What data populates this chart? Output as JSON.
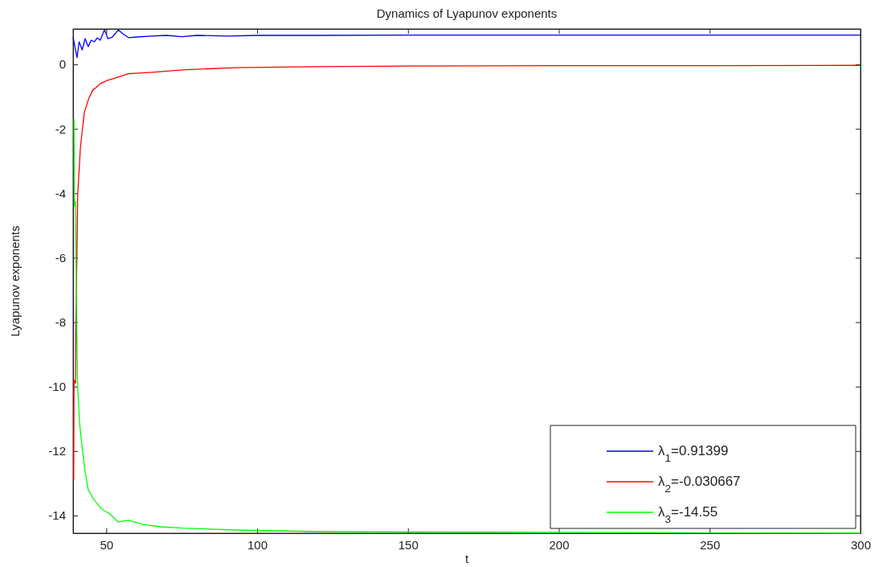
{
  "chart_data": {
    "type": "line",
    "title": "Dynamics of Lyapunov exponents",
    "xlabel": "t",
    "ylabel": "Lyapunov exponents",
    "xlim": [
      39,
      300
    ],
    "ylim": [
      -14.55,
      1.1
    ],
    "xticks": [
      50,
      100,
      150,
      200,
      250,
      300
    ],
    "yticks": [
      -14,
      -12,
      -10,
      -8,
      -6,
      -4,
      -2,
      0
    ],
    "grid": false,
    "legend": "bottom right",
    "line_style": "solid",
    "marker": "none",
    "series": [
      {
        "name": "λ$_{1}$=0.91399",
        "color": "#0000ff",
        "x": [
          39,
          40.3,
          41,
          42,
          43,
          44,
          45,
          46,
          47,
          48,
          49.4,
          50.5,
          52,
          54,
          55.5,
          57.4,
          60,
          65,
          70,
          75,
          80,
          90,
          100,
          120,
          150,
          200,
          250,
          300
        ],
        "values": [
          0.85,
          0.21,
          0.7,
          0.45,
          0.8,
          0.55,
          0.75,
          0.7,
          0.82,
          0.75,
          1.08,
          0.8,
          0.85,
          1.07,
          0.95,
          0.83,
          0.85,
          0.88,
          0.9,
          0.86,
          0.9,
          0.88,
          0.9,
          0.9,
          0.91,
          0.91,
          0.91,
          0.91
        ]
      },
      {
        "name": "λ$_{2}$=-0.030667",
        "color": "#ff0000",
        "x": [
          39.2,
          39.3,
          39.8,
          39.9,
          40.3,
          40.5,
          41.4,
          42.7,
          44.1,
          45.5,
          46.7,
          48,
          50.2,
          52,
          57.4,
          66.2,
          75.3,
          93,
          119.5,
          150,
          200,
          250,
          300
        ],
        "values": [
          -12.9,
          -9.8,
          -9.9,
          -8.2,
          -5.7,
          -4.1,
          -2.6,
          -1.5,
          -1.08,
          -0.8,
          -0.71,
          -0.6,
          -0.5,
          -0.45,
          -0.29,
          -0.24,
          -0.17,
          -0.1,
          -0.07,
          -0.05,
          -0.04,
          -0.04,
          -0.03
        ]
      },
      {
        "name": "λ$_{3}$=-14.55",
        "color": "#00ff00",
        "x": [
          39.3,
          39.4,
          39.8,
          40.2,
          40.5,
          41.2,
          41.9,
          42.9,
          44,
          45.8,
          48.5,
          51.2,
          53.9,
          57.4,
          61.8,
          68,
          75.2,
          93,
          120,
          200,
          250,
          300
        ],
        "values": [
          -1.69,
          -4.4,
          -4.25,
          -8.2,
          -10,
          -11.2,
          -11.8,
          -12.6,
          -13.2,
          -13.5,
          -13.8,
          -13.95,
          -14.2,
          -14.15,
          -14.27,
          -14.35,
          -14.39,
          -14.45,
          -14.5,
          -14.52,
          -14.54,
          -14.55
        ]
      }
    ]
  }
}
